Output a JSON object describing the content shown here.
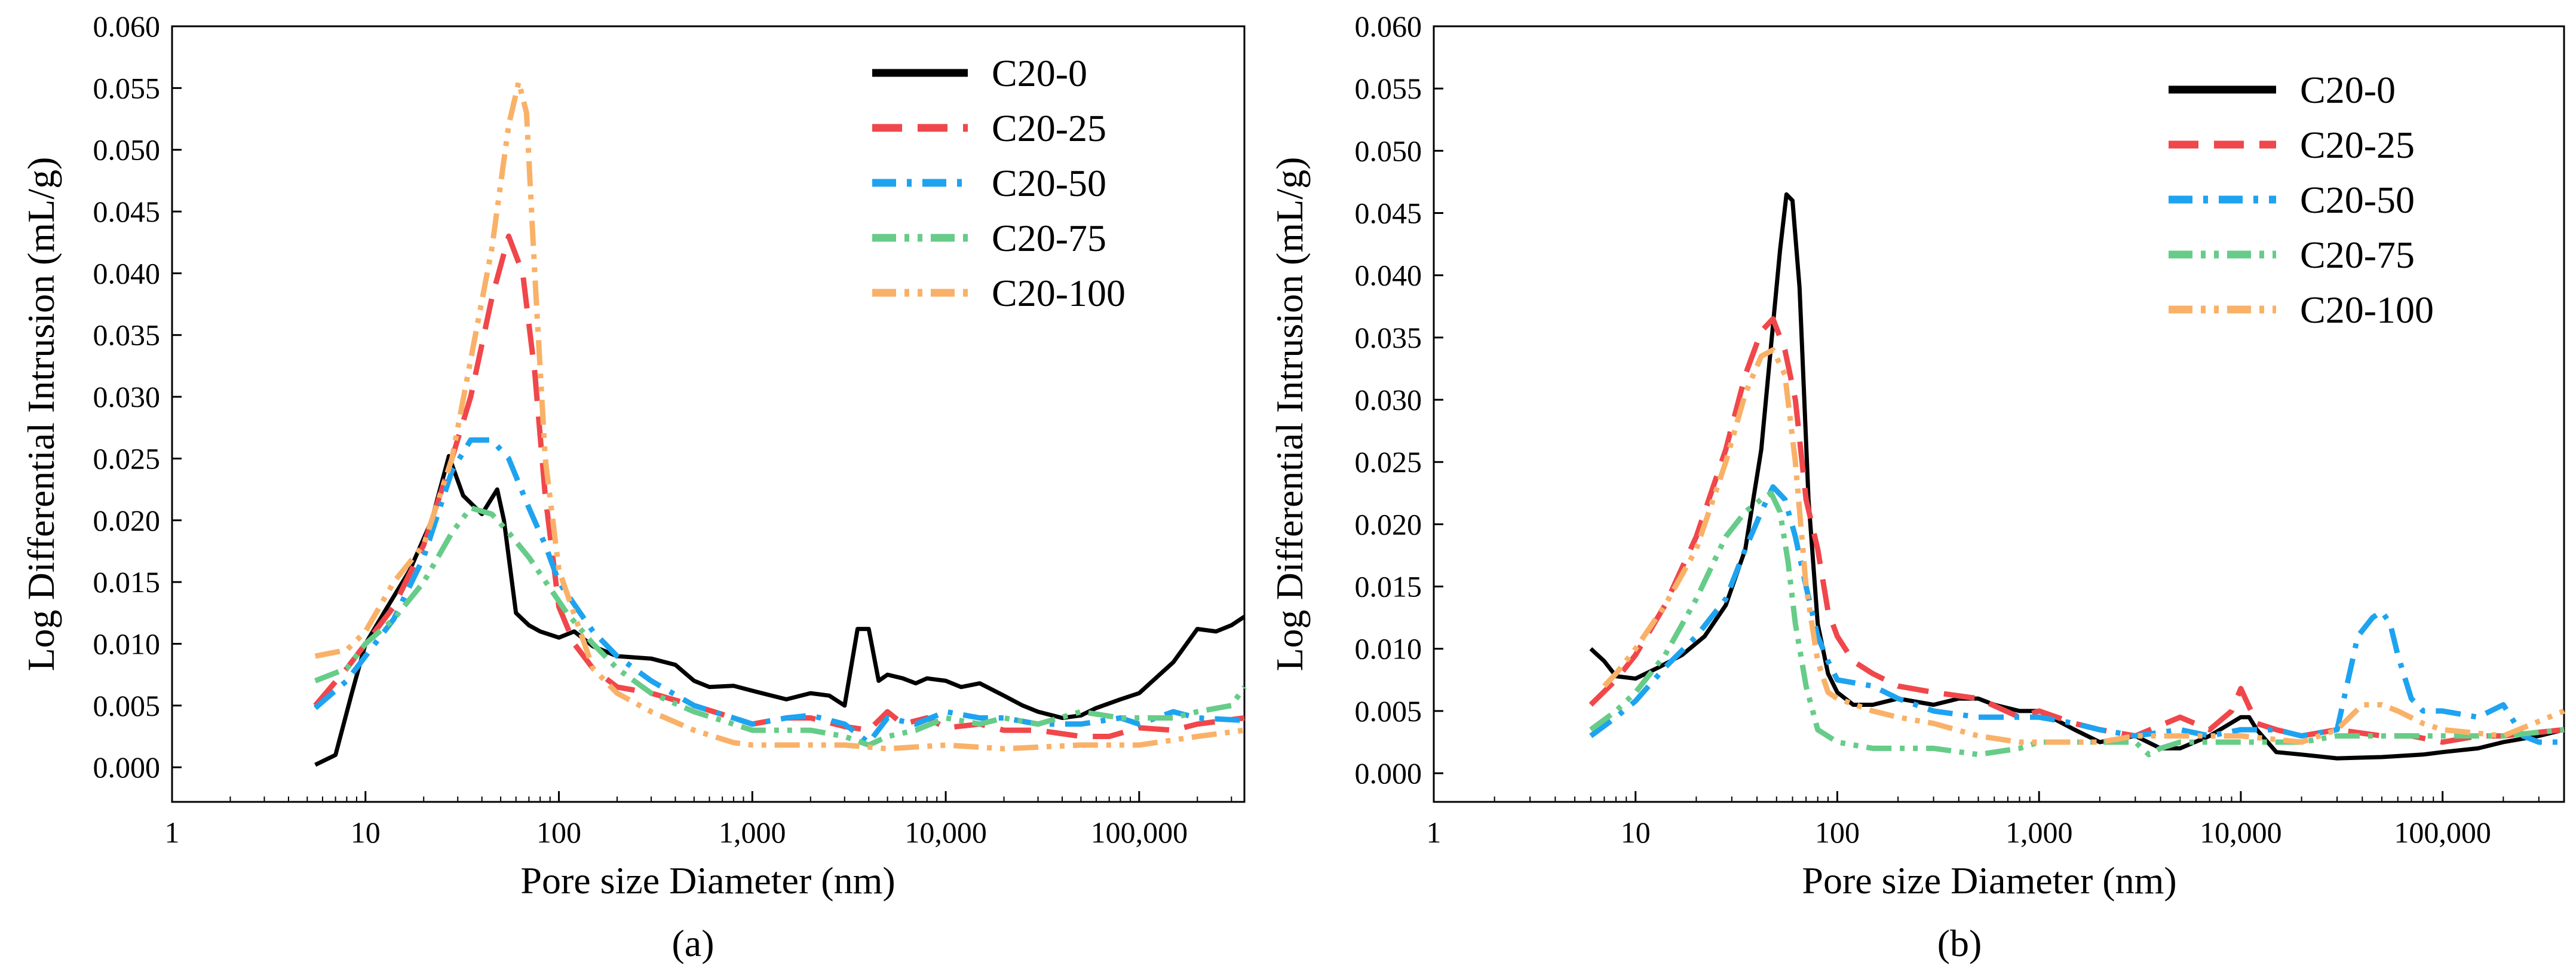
{
  "chart_data": [
    {
      "panel": "a",
      "caption": "(a)",
      "type": "line",
      "xscale": "log",
      "xlabel": "Pore size Diameter (nm)",
      "ylabel": "Log Differential Intrusion (mL/g)",
      "xlim": [
        1,
        350000
      ],
      "ylim": [
        -0.0028,
        0.06
      ],
      "xticks": [
        1,
        10,
        100,
        1000,
        10000,
        100000
      ],
      "xtick_labels": [
        "1",
        "10",
        "100",
        "1,000",
        "10,000",
        "100,000"
      ],
      "yticks": [
        0,
        0.005,
        0.01,
        0.015,
        0.02,
        0.025,
        0.03,
        0.035,
        0.04,
        0.045,
        0.05,
        0.055,
        0.06
      ],
      "ytick_labels": [
        "0.000",
        "0.005",
        "0.010",
        "0.015",
        "0.020",
        "0.025",
        "0.030",
        "0.035",
        "0.040",
        "0.045",
        "0.050",
        "0.055",
        "0.060"
      ],
      "legend_position": "top-right",
      "series": [
        {
          "name": "C20-0",
          "color": "#000000",
          "dash": "solid",
          "x": [
            5.5,
            7,
            8.5,
            10,
            13,
            17,
            22,
            27,
            32,
            40,
            48,
            52,
            60,
            70,
            80,
            100,
            120,
            150,
            200,
            300,
            400,
            500,
            600,
            800,
            1000,
            1500,
            2000,
            2500,
            3000,
            3500,
            4000,
            4500,
            5000,
            6000,
            7000,
            8000,
            10000,
            12000,
            15000,
            20000,
            25000,
            30000,
            40000,
            50000,
            60000,
            80000,
            100000,
            150000,
            200000,
            250000,
            300000,
            350000
          ],
          "y": [
            0.0002,
            0.001,
            0.006,
            0.01,
            0.013,
            0.016,
            0.02,
            0.0252,
            0.022,
            0.0205,
            0.0225,
            0.02,
            0.0125,
            0.0115,
            0.011,
            0.0105,
            0.011,
            0.0098,
            0.009,
            0.0088,
            0.0083,
            0.007,
            0.0065,
            0.0066,
            0.0062,
            0.0055,
            0.006,
            0.0058,
            0.005,
            0.0112,
            0.0112,
            0.007,
            0.0075,
            0.0072,
            0.0068,
            0.0072,
            0.007,
            0.0065,
            0.0068,
            0.0058,
            0.005,
            0.0045,
            0.004,
            0.0042,
            0.0048,
            0.0055,
            0.006,
            0.0085,
            0.0112,
            0.011,
            0.0115,
            0.0122
          ]
        },
        {
          "name": "C20-25",
          "color": "#f0474b",
          "dash": "long-dash",
          "x": [
            5.5,
            8,
            10,
            14,
            20,
            28,
            35,
            45,
            55,
            65,
            75,
            85,
            100,
            120,
            150,
            200,
            300,
            500,
            800,
            1000,
            1500,
            2000,
            3000,
            4000,
            5000,
            6000,
            8000,
            10000,
            15000,
            20000,
            30000,
            50000,
            70000,
            100000,
            150000,
            200000,
            350000
          ],
          "y": [
            0.005,
            0.008,
            0.01,
            0.013,
            0.018,
            0.025,
            0.03,
            0.038,
            0.043,
            0.04,
            0.032,
            0.022,
            0.013,
            0.01,
            0.008,
            0.0065,
            0.006,
            0.005,
            0.004,
            0.0035,
            0.004,
            0.004,
            0.0033,
            0.003,
            0.0045,
            0.0035,
            0.004,
            0.0032,
            0.0035,
            0.003,
            0.003,
            0.0025,
            0.0025,
            0.0032,
            0.003,
            0.0035,
            0.004
          ]
        },
        {
          "name": "C20-50",
          "color": "#1ea3f0",
          "dash": "dash-dot",
          "x": [
            5.5,
            8,
            10,
            14,
            20,
            28,
            35,
            45,
            55,
            70,
            85,
            100,
            150,
            200,
            300,
            500,
            800,
            1000,
            1500,
            2000,
            3000,
            4000,
            5000,
            7000,
            10000,
            15000,
            20000,
            30000,
            50000,
            80000,
            100000,
            150000,
            200000,
            350000
          ],
          "y": [
            0.0048,
            0.007,
            0.009,
            0.012,
            0.017,
            0.024,
            0.0265,
            0.0265,
            0.025,
            0.021,
            0.018,
            0.015,
            0.011,
            0.009,
            0.007,
            0.005,
            0.004,
            0.0035,
            0.004,
            0.0042,
            0.0035,
            0.002,
            0.004,
            0.0035,
            0.0045,
            0.004,
            0.004,
            0.0035,
            0.0035,
            0.004,
            0.0035,
            0.0045,
            0.004,
            0.0038
          ]
        },
        {
          "name": "C20-75",
          "color": "#66cc88",
          "dash": "dash-dot-dot",
          "x": [
            5.5,
            8,
            10,
            14,
            20,
            28,
            35,
            45,
            55,
            70,
            90,
            110,
            150,
            200,
            300,
            500,
            800,
            1000,
            2000,
            3000,
            4000,
            5000,
            7000,
            10000,
            15000,
            20000,
            30000,
            50000,
            80000,
            100000,
            150000,
            200000,
            300000,
            350000
          ],
          "y": [
            0.007,
            0.008,
            0.01,
            0.012,
            0.015,
            0.019,
            0.021,
            0.0205,
            0.019,
            0.017,
            0.0145,
            0.0125,
            0.01,
            0.008,
            0.006,
            0.0045,
            0.0035,
            0.003,
            0.003,
            0.0025,
            0.0018,
            0.0025,
            0.003,
            0.004,
            0.0035,
            0.004,
            0.0035,
            0.0045,
            0.004,
            0.004,
            0.004,
            0.0045,
            0.005,
            0.0065
          ]
        },
        {
          "name": "C20-100",
          "color": "#f9b168",
          "dash": "dash-dot-dot",
          "x": [
            5.5,
            8,
            10,
            14,
            20,
            28,
            35,
            45,
            55,
            62,
            68,
            75,
            85,
            100,
            150,
            200,
            300,
            500,
            800,
            1000,
            2000,
            3000,
            5000,
            10000,
            20000,
            50000,
            100000,
            200000,
            350000
          ],
          "y": [
            0.009,
            0.0095,
            0.011,
            0.015,
            0.018,
            0.025,
            0.033,
            0.042,
            0.052,
            0.0555,
            0.053,
            0.04,
            0.025,
            0.016,
            0.008,
            0.006,
            0.0045,
            0.003,
            0.002,
            0.0018,
            0.0018,
            0.0018,
            0.0015,
            0.0018,
            0.0015,
            0.0018,
            0.0018,
            0.0025,
            0.003
          ]
        }
      ]
    },
    {
      "panel": "b",
      "caption": "(b)",
      "type": "line",
      "xscale": "log",
      "xlabel": "Pore size Diameter (nm)",
      "ylabel": "Log Differential Intrusion (mL/g)",
      "xlim": [
        1,
        400000
      ],
      "ylim": [
        -0.0023,
        0.06
      ],
      "xticks": [
        1,
        10,
        100,
        1000,
        10000,
        100000
      ],
      "xtick_labels": [
        "1",
        "10",
        "100",
        "1,000",
        "10,000",
        "100,000"
      ],
      "yticks": [
        0,
        0.005,
        0.01,
        0.015,
        0.02,
        0.025,
        0.03,
        0.035,
        0.04,
        0.045,
        0.05,
        0.055,
        0.06
      ],
      "ytick_labels": [
        "0.000",
        "0.005",
        "0.010",
        "0.015",
        "0.020",
        "0.025",
        "0.030",
        "0.035",
        "0.040",
        "0.045",
        "0.050",
        "0.055",
        "0.060"
      ],
      "legend_position": "top-right",
      "series": [
        {
          "name": "C20-0",
          "color": "#000000",
          "dash": "solid",
          "x": [
            6,
            7,
            8,
            10,
            13,
            17,
            22,
            28,
            35,
            42,
            48,
            52,
            56,
            60,
            65,
            72,
            80,
            90,
            100,
            120,
            150,
            200,
            300,
            400,
            500,
            600,
            800,
            1000,
            1500,
            2000,
            3000,
            4000,
            5000,
            7000,
            10000,
            11000,
            12000,
            15000,
            20000,
            30000,
            50000,
            80000,
            100000,
            150000,
            200000,
            300000,
            400000
          ],
          "y": [
            0.01,
            0.009,
            0.0078,
            0.0076,
            0.0085,
            0.0095,
            0.011,
            0.0135,
            0.018,
            0.026,
            0.036,
            0.042,
            0.0465,
            0.046,
            0.039,
            0.022,
            0.012,
            0.008,
            0.0065,
            0.0055,
            0.0055,
            0.006,
            0.0055,
            0.006,
            0.006,
            0.0055,
            0.005,
            0.005,
            0.0035,
            0.0025,
            0.003,
            0.002,
            0.002,
            0.003,
            0.0045,
            0.0045,
            0.0035,
            0.0017,
            0.0015,
            0.0012,
            0.0013,
            0.0015,
            0.0017,
            0.002,
            0.0025,
            0.003,
            0.0035
          ]
        },
        {
          "name": "C20-25",
          "color": "#f0474b",
          "dash": "long-dash",
          "x": [
            6,
            8,
            10,
            14,
            20,
            28,
            35,
            42,
            48,
            55,
            62,
            70,
            80,
            90,
            100,
            120,
            150,
            200,
            300,
            500,
            800,
            1000,
            1500,
            2000,
            3000,
            5000,
            7000,
            9000,
            10000,
            12000,
            15000,
            20000,
            30000,
            50000,
            70000,
            100000,
            150000,
            200000,
            400000
          ],
          "y": [
            0.0055,
            0.0075,
            0.0095,
            0.0135,
            0.019,
            0.026,
            0.032,
            0.0355,
            0.0365,
            0.034,
            0.03,
            0.022,
            0.018,
            0.013,
            0.011,
            0.009,
            0.008,
            0.007,
            0.0065,
            0.006,
            0.0045,
            0.005,
            0.004,
            0.0035,
            0.003,
            0.0045,
            0.0035,
            0.005,
            0.0068,
            0.004,
            0.0035,
            0.003,
            0.0035,
            0.003,
            0.003,
            0.0025,
            0.003,
            0.003,
            0.0035
          ]
        },
        {
          "name": "C20-50",
          "color": "#1ea3f0",
          "dash": "dash-dot",
          "x": [
            6,
            8,
            10,
            14,
            20,
            28,
            35,
            42,
            48,
            55,
            62,
            70,
            80,
            90,
            100,
            150,
            200,
            300,
            500,
            800,
            1000,
            1500,
            2000,
            3000,
            5000,
            7000,
            10000,
            15000,
            20000,
            30000,
            38000,
            45000,
            50000,
            55000,
            60000,
            70000,
            80000,
            100000,
            150000,
            200000,
            250000,
            300000,
            400000
          ],
          "y": [
            0.003,
            0.0045,
            0.0058,
            0.0085,
            0.011,
            0.014,
            0.018,
            0.021,
            0.023,
            0.022,
            0.019,
            0.015,
            0.011,
            0.009,
            0.0075,
            0.007,
            0.006,
            0.005,
            0.0045,
            0.0045,
            0.0045,
            0.004,
            0.0035,
            0.003,
            0.0035,
            0.003,
            0.0035,
            0.0035,
            0.003,
            0.0035,
            0.011,
            0.0125,
            0.013,
            0.012,
            0.0095,
            0.006,
            0.005,
            0.005,
            0.0045,
            0.0055,
            0.003,
            0.0025,
            0.0025
          ]
        },
        {
          "name": "C20-75",
          "color": "#66cc88",
          "dash": "dash-dot-dot",
          "x": [
            6,
            8,
            10,
            14,
            20,
            28,
            35,
            42,
            47,
            52,
            57,
            62,
            70,
            80,
            100,
            150,
            200,
            300,
            500,
            800,
            1000,
            2000,
            3000,
            3500,
            4000,
            5000,
            7000,
            10000,
            20000,
            30000,
            50000,
            100000,
            200000,
            400000
          ],
          "y": [
            0.0035,
            0.005,
            0.0065,
            0.0095,
            0.014,
            0.019,
            0.021,
            0.022,
            0.0225,
            0.021,
            0.017,
            0.012,
            0.007,
            0.0035,
            0.0025,
            0.002,
            0.002,
            0.002,
            0.0015,
            0.002,
            0.0025,
            0.0025,
            0.0025,
            0.0015,
            0.002,
            0.0025,
            0.0025,
            0.0025,
            0.0025,
            0.003,
            0.003,
            0.003,
            0.003,
            0.0035
          ]
        },
        {
          "name": "C20-100",
          "color": "#f9b168",
          "dash": "dash-dot-dot",
          "x": [
            7,
            8,
            10,
            14,
            20,
            28,
            35,
            42,
            48,
            55,
            62,
            70,
            80,
            90,
            100,
            150,
            200,
            300,
            500,
            800,
            1000,
            2000,
            3000,
            5000,
            10000,
            20000,
            30000,
            40000,
            50000,
            60000,
            80000,
            100000,
            200000,
            400000
          ],
          "y": [
            0.007,
            0.008,
            0.01,
            0.0135,
            0.018,
            0.025,
            0.0305,
            0.0335,
            0.034,
            0.032,
            0.025,
            0.015,
            0.009,
            0.0065,
            0.006,
            0.005,
            0.0045,
            0.004,
            0.003,
            0.0025,
            0.0025,
            0.0025,
            0.003,
            0.003,
            0.003,
            0.0025,
            0.0035,
            0.0055,
            0.0055,
            0.005,
            0.004,
            0.0035,
            0.003,
            0.005
          ]
        }
      ]
    }
  ]
}
